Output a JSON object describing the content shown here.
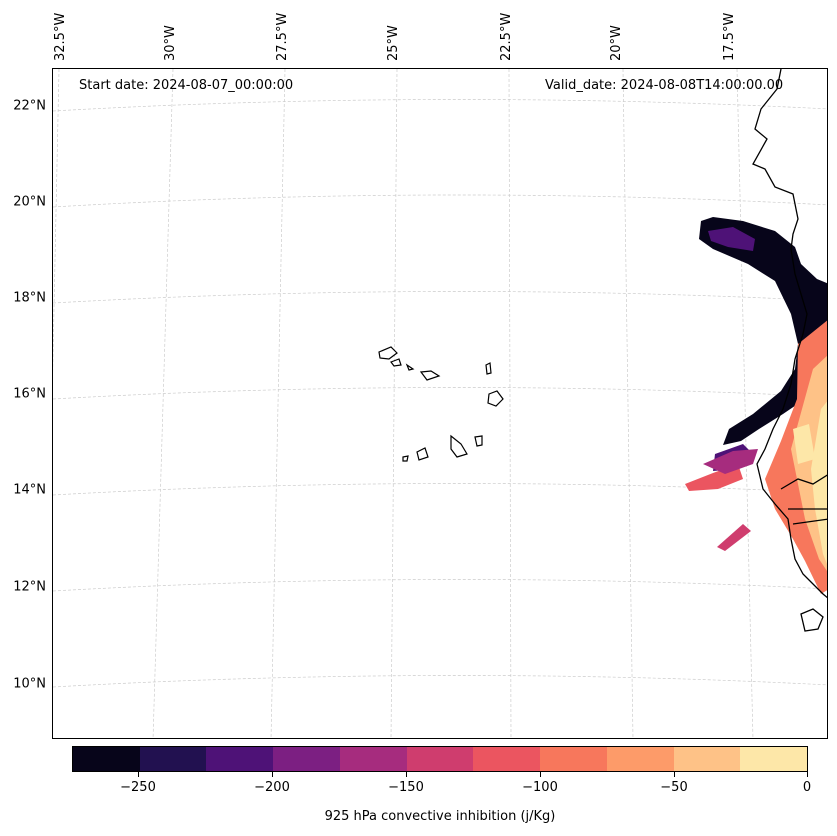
{
  "annotations": {
    "start_date": "Start date: 2024-08-07_00:00:00",
    "valid_date": "Valid_date: 2024-08-08T14:00:00.00"
  },
  "map": {
    "lat_labels": [
      "22°N",
      "20°N",
      "18°N",
      "16°N",
      "14°N",
      "12°N",
      "10°N"
    ],
    "lon_labels": [
      "32.5°W",
      "30°W",
      "27.5°W",
      "25°W",
      "22.5°W",
      "20°W",
      "17.5°W"
    ]
  },
  "colorbar": {
    "label": "925 hPa convective inhibition (j/Kg)",
    "tick_labels": [
      "−250",
      "−200",
      "−150",
      "−100",
      "−50",
      "0"
    ],
    "colors": [
      "#07051a",
      "#221150",
      "#4e1277",
      "#7c1f82",
      "#a62c7e",
      "#cf3d6e",
      "#eb5560",
      "#f7775c",
      "#fd9b69",
      "#fec287",
      "#fde7a8"
    ],
    "range": [
      -275,
      0
    ]
  }
}
